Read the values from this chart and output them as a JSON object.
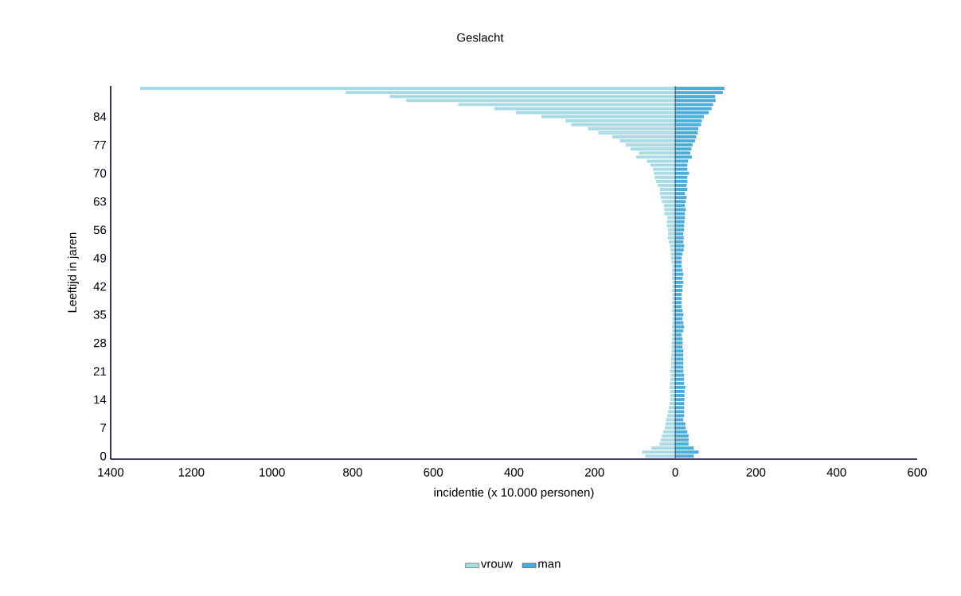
{
  "chart_data": {
    "type": "bar",
    "orientation": "horizontal",
    "title": "Geslacht",
    "xlabel": "incidentie (x 10.000 personen)",
    "ylabel": "Leeftijd in jaren",
    "categories": [
      null,
      null,
      null,
      null,
      null,
      null,
      null,
      "84",
      null,
      null,
      null,
      null,
      null,
      null,
      "77",
      null,
      null,
      null,
      null,
      null,
      null,
      "70",
      null,
      null,
      null,
      null,
      null,
      null,
      "63",
      null,
      null,
      null,
      null,
      null,
      null,
      "56",
      null,
      null,
      null,
      null,
      null,
      null,
      "49",
      null,
      null,
      null,
      null,
      null,
      null,
      "42",
      null,
      null,
      null,
      null,
      null,
      null,
      "35",
      null,
      null,
      null,
      null,
      null,
      null,
      "28",
      null,
      null,
      null,
      null,
      null,
      null,
      "21",
      null,
      null,
      null,
      null,
      null,
      null,
      "14",
      null,
      null,
      null,
      null,
      null,
      null,
      "7",
      null,
      null,
      null,
      null,
      null,
      null,
      "0"
    ],
    "series": [
      {
        "name": "vrouw",
        "color": "#a8dbe3",
        "values": [
          -1327,
          -817,
          -708,
          -667,
          -538,
          -449,
          -395,
          -332,
          -272,
          -258,
          -216,
          -191,
          -156,
          -137,
          -123,
          -111,
          -90,
          -97,
          -70,
          -62,
          -55,
          -53,
          -51,
          -48,
          -43,
          -38,
          -38,
          -36,
          -33,
          -28,
          -27,
          -27,
          -20,
          -21,
          -21,
          -18,
          -18,
          -18,
          -16,
          -13,
          -12,
          -11,
          -10,
          -9,
          -7,
          -8,
          -8,
          -8,
          -7,
          -7,
          -8,
          -7,
          -7,
          -8,
          -7,
          -8,
          -7,
          -7,
          -7,
          -8,
          -7,
          -8,
          -8,
          -9,
          -9,
          -9,
          -10,
          -10,
          -10,
          -10,
          -13,
          -11,
          -12,
          -13,
          -14,
          -13,
          -12,
          -12,
          -14,
          -16,
          -18,
          -20,
          -23,
          -24,
          -26,
          -30,
          -33,
          -36,
          -39,
          -59,
          -82,
          -74
        ]
      },
      {
        "name": "man",
        "color": "#4badd8",
        "values": [
          122,
          118,
          99,
          100,
          94,
          90,
          83,
          71,
          66,
          64,
          57,
          56,
          52,
          49,
          43,
          40,
          37,
          41,
          32,
          30,
          30,
          34,
          30,
          30,
          28,
          30,
          24,
          28,
          26,
          24,
          26,
          24,
          24,
          23,
          22,
          22,
          20,
          21,
          20,
          22,
          21,
          18,
          16,
          16,
          16,
          18,
          20,
          18,
          20,
          18,
          18,
          16,
          16,
          16,
          16,
          18,
          20,
          18,
          20,
          22,
          20,
          16,
          18,
          18,
          18,
          20,
          20,
          20,
          20,
          20,
          20,
          22,
          22,
          22,
          25,
          23,
          23,
          23,
          22,
          22,
          22,
          22,
          20,
          25,
          26,
          30,
          33,
          33,
          33,
          46,
          58,
          46
        ]
      }
    ],
    "xlim": [
      -1400,
      600
    ],
    "xticks": [
      {
        "value": -1400,
        "label": "1400"
      },
      {
        "value": -1200,
        "label": "1200"
      },
      {
        "value": -1000,
        "label": "1000"
      },
      {
        "value": -800,
        "label": "800"
      },
      {
        "value": -600,
        "label": "600"
      },
      {
        "value": -400,
        "label": "400"
      },
      {
        "value": -200,
        "label": "200"
      },
      0,
      200,
      400,
      600
    ],
    "ref_lines": [
      {
        "axis": "x",
        "value": 0,
        "color": "#1f2d3d"
      }
    ],
    "legend": "bottom",
    "stacked": true
  }
}
